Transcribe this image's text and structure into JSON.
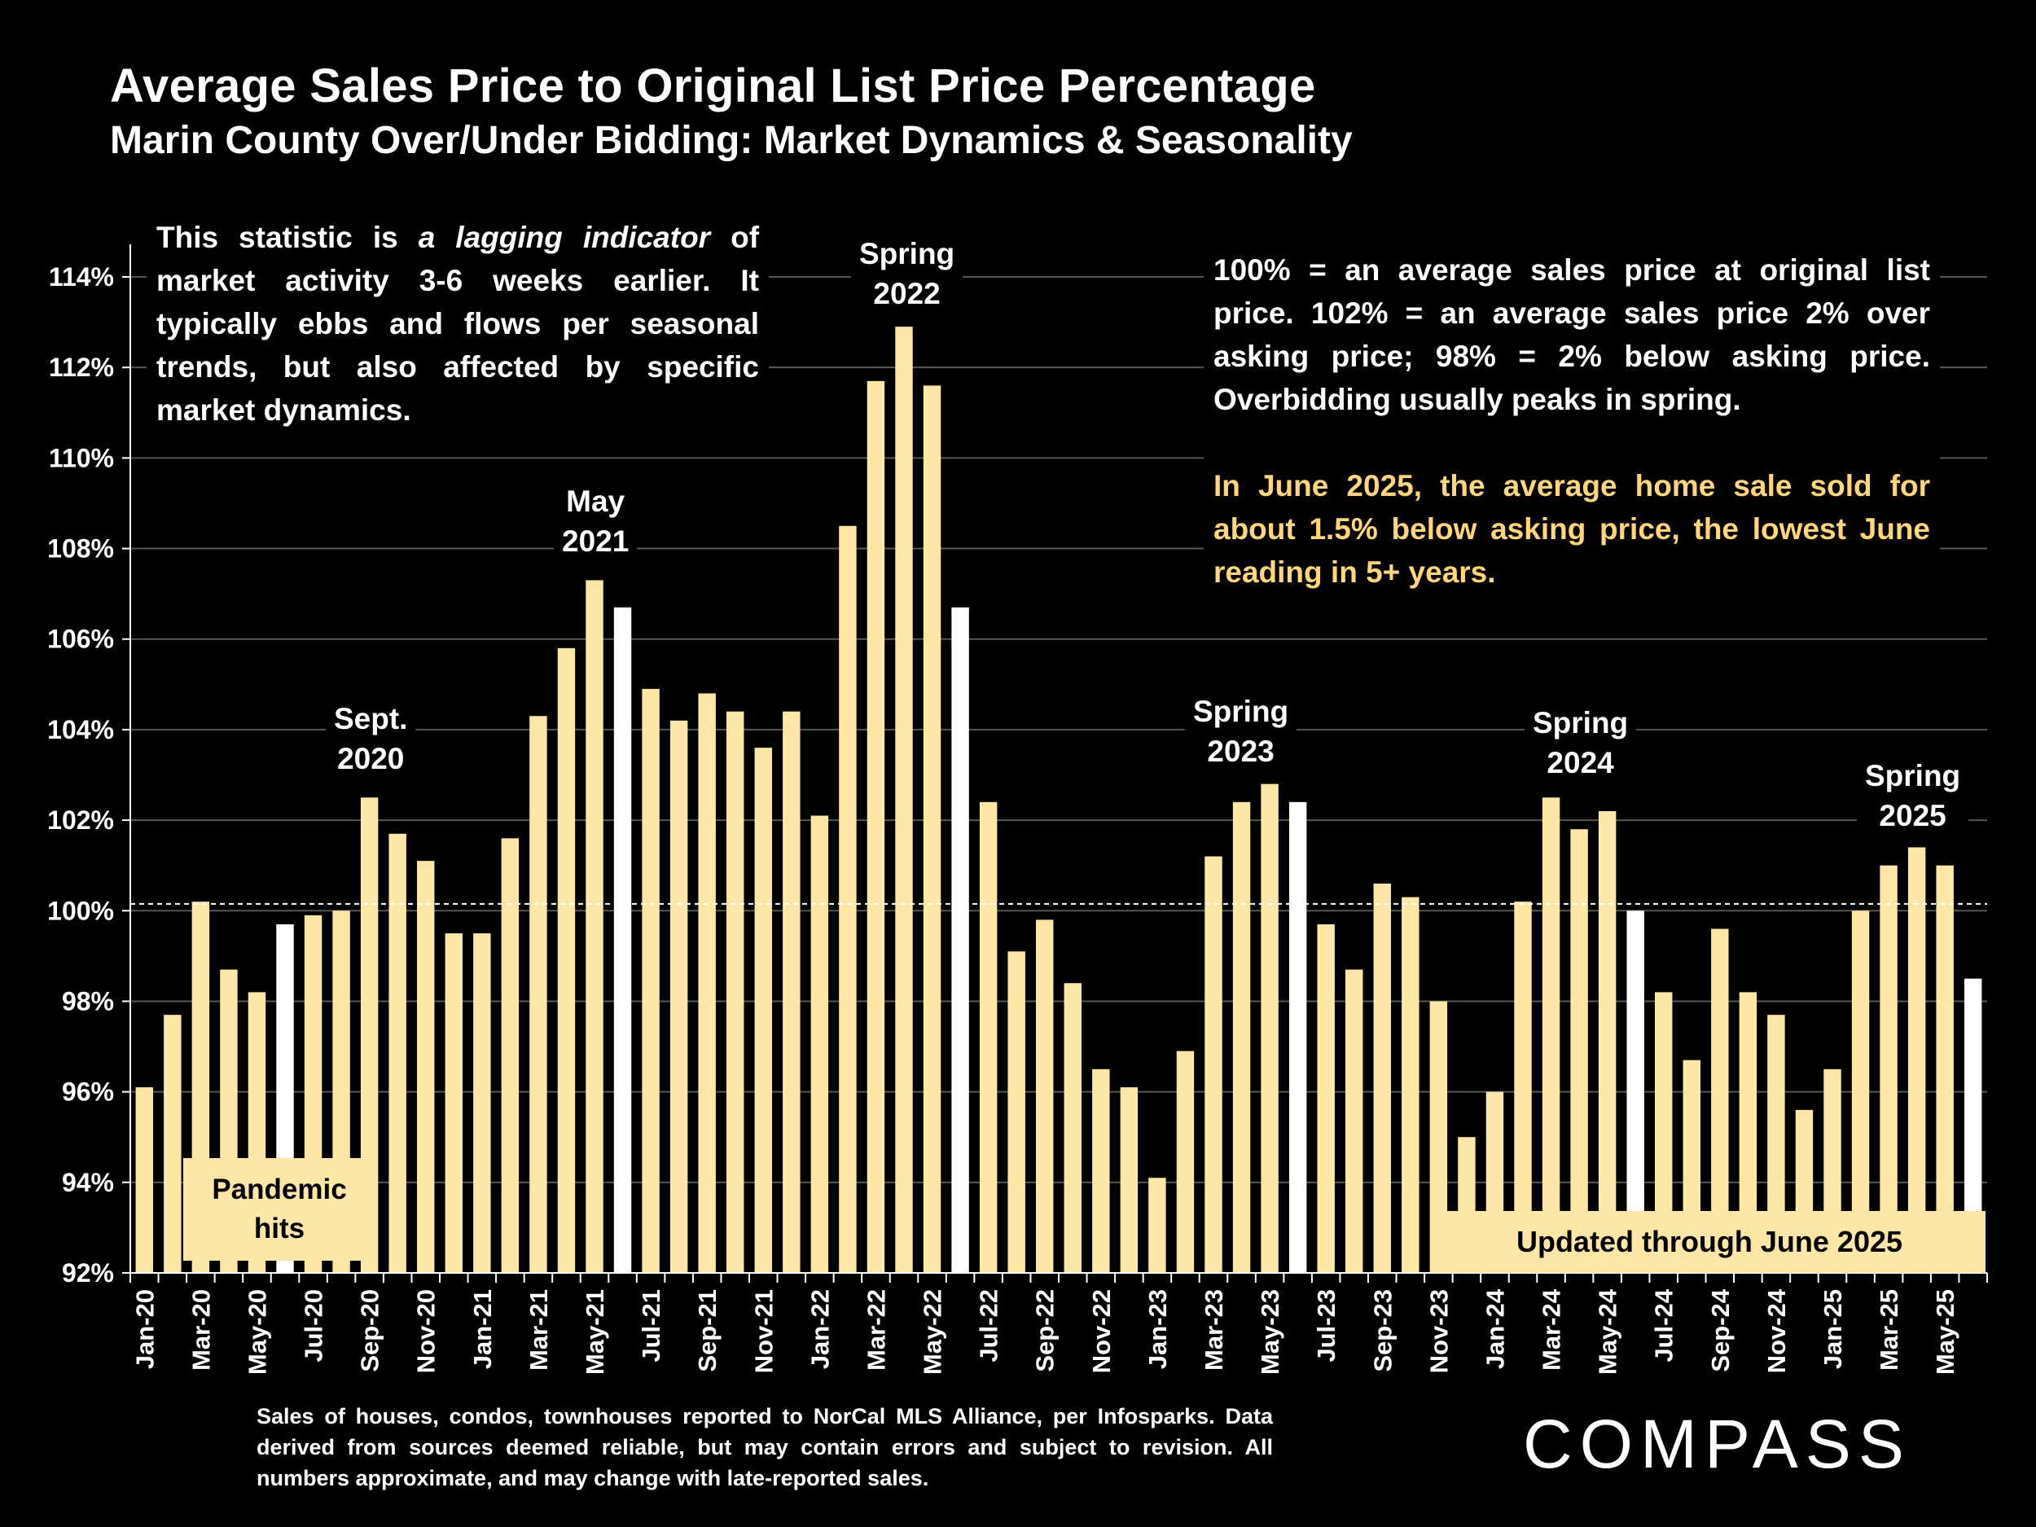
{
  "header": {
    "title": "Average Sales Price to Original List Price Percentage",
    "subtitle": "Marin County Over/Under Bidding: Market Dynamics & Seasonality"
  },
  "notes": {
    "left_before": "This statistic is ",
    "left_emphasis": "a lagging indicator",
    "left_after": " of market activity 3-6 weeks earlier. It typically ebbs and flows per seasonal trends, but also affected by specific market dynamics.",
    "right_main": "100% = an average sales price at original list price. 102% = an average sales price 2% over asking price; 98% = 2% below asking price. Overbidding usually peaks in spring.",
    "right_highlight": "In June 2025, the average home sale sold for about 1.5% below asking price, the lowest June reading in 5+ years."
  },
  "event_labels": {
    "sept2020": {
      "line1": "Sept.",
      "line2": "2020"
    },
    "may2021": {
      "line1": "May",
      "line2": "2021"
    },
    "spring2022": {
      "line1": "Spring",
      "line2": "2022"
    },
    "spring2023": {
      "line1": "Spring",
      "line2": "2023"
    },
    "spring2024": {
      "line1": "Spring",
      "line2": "2024"
    },
    "spring2025": {
      "line1": "Spring",
      "line2": "2025"
    }
  },
  "pandemic_box": {
    "line1": "Pandemic",
    "line2": "hits"
  },
  "updated_box": "Updated through June 2025",
  "footnote": "Sales of houses, condos, townhouses reported to NorCal MLS Alliance, per Infosparks. Data derived from sources deemed reliable, but may contain errors and subject to revision. All numbers approximate, and may change with late-reported sales.",
  "logo": "COMPASS",
  "colors": {
    "background": "#000000",
    "bar": "#fde7a6",
    "june_bar": "#ffffff",
    "highlight_text": "#ffd77a",
    "gridline": "#555555"
  },
  "chart_data": {
    "type": "bar",
    "title": "Average Sales Price to Original List Price Percentage",
    "xlabel": "",
    "ylabel": "",
    "ylim": [
      92,
      114
    ],
    "yticks": [
      92,
      94,
      96,
      98,
      100,
      102,
      104,
      106,
      108,
      110,
      112,
      114
    ],
    "ytick_labels": [
      "92%",
      "94%",
      "96%",
      "98%",
      "100%",
      "102%",
      "104%",
      "106%",
      "108%",
      "110%",
      "112%",
      "114%"
    ],
    "reference_line": 100.15,
    "grid": true,
    "categories": [
      "Jan-20",
      "Feb-20",
      "Mar-20",
      "Apr-20",
      "May-20",
      "Jun-20",
      "Jul-20",
      "Aug-20",
      "Sep-20",
      "Oct-20",
      "Nov-20",
      "Dec-20",
      "Jan-21",
      "Feb-21",
      "Mar-21",
      "Apr-21",
      "May-21",
      "Jun-21",
      "Jul-21",
      "Aug-21",
      "Sep-21",
      "Oct-21",
      "Nov-21",
      "Dec-21",
      "Jan-22",
      "Feb-22",
      "Mar-22",
      "Apr-22",
      "May-22",
      "Jun-22",
      "Jul-22",
      "Aug-22",
      "Sep-22",
      "Oct-22",
      "Nov-22",
      "Dec-22",
      "Jan-23",
      "Feb-23",
      "Mar-23",
      "Apr-23",
      "May-23",
      "Jun-23",
      "Jul-23",
      "Aug-23",
      "Sep-23",
      "Oct-23",
      "Nov-23",
      "Dec-23",
      "Jan-24",
      "Feb-24",
      "Mar-24",
      "Apr-24",
      "May-24",
      "Jun-24",
      "Jul-24",
      "Aug-24",
      "Sep-24",
      "Oct-24",
      "Nov-24",
      "Dec-24",
      "Jan-25",
      "Feb-25",
      "Mar-25",
      "Apr-25",
      "May-25",
      "Jun-25"
    ],
    "tick_labels": [
      "Jan-20",
      "Mar-20",
      "May-20",
      "Jul-20",
      "Sep-20",
      "Nov-20",
      "Jan-21",
      "Mar-21",
      "May-21",
      "Jul-21",
      "Sep-21",
      "Nov-21",
      "Jan-22",
      "Mar-22",
      "May-22",
      "Jul-22",
      "Sep-22",
      "Nov-22",
      "Jan-23",
      "Mar-23",
      "May-23",
      "Jul-23",
      "Sep-23",
      "Nov-23",
      "Jan-24",
      "Mar-24",
      "May-24",
      "Jul-24",
      "Sep-24",
      "Nov-24",
      "Jan-25",
      "Mar-25",
      "May-25"
    ],
    "values": [
      96.1,
      97.7,
      100.2,
      98.7,
      98.2,
      99.7,
      99.9,
      100.0,
      102.5,
      101.7,
      101.1,
      99.5,
      99.5,
      101.6,
      104.3,
      105.8,
      107.3,
      106.7,
      104.9,
      104.2,
      104.8,
      104.4,
      103.6,
      104.4,
      102.1,
      108.5,
      111.7,
      112.9,
      111.6,
      106.7,
      102.4,
      99.1,
      99.8,
      98.4,
      96.5,
      96.1,
      94.1,
      96.9,
      101.2,
      102.4,
      102.8,
      102.4,
      99.7,
      98.7,
      100.6,
      100.3,
      98.0,
      95.0,
      96.0,
      100.2,
      102.5,
      101.8,
      102.2,
      100.0,
      98.2,
      96.7,
      99.6,
      98.2,
      97.7,
      95.6,
      96.5,
      100.0,
      101.0,
      101.4,
      101.0,
      98.5
    ],
    "highlighted_months": [
      "Jun-20",
      "Jun-21",
      "Jun-22",
      "Jun-23",
      "Jun-24",
      "Jun-25"
    ]
  }
}
